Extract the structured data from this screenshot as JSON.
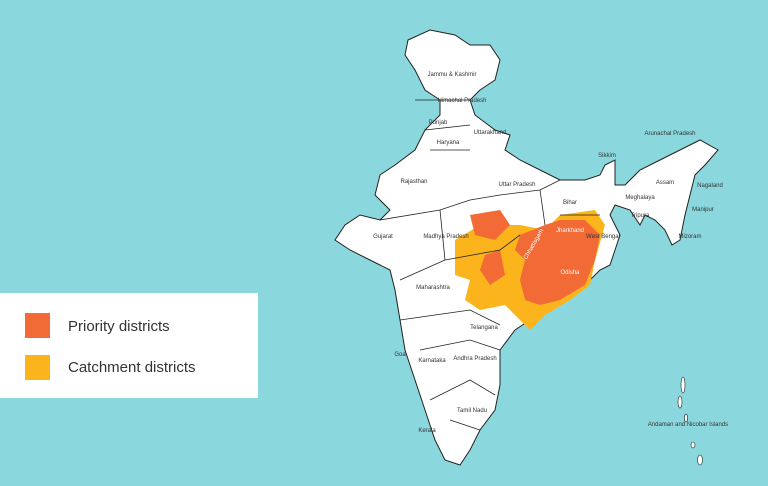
{
  "legend": {
    "items": [
      {
        "label": "Priority districts",
        "color": "#f26a36"
      },
      {
        "label": "Catchment districts",
        "color": "#fbb41c"
      }
    ]
  },
  "labels": [
    "Jammu & Kashmir",
    "Himachal Pradesh",
    "Punjab",
    "Uttarakhand",
    "Haryana",
    "Rajasthan",
    "Uttar Pradesh",
    "Sikkim",
    "Arunachal Pradesh",
    "Assam",
    "Nagaland",
    "Bihar",
    "Meghalaya",
    "Manipur",
    "Tripura",
    "Mizoram",
    "Gujarat",
    "Madhya Pradesh",
    "Jharkhand",
    "West Bengal",
    "Chhattisgarh",
    "Odisha",
    "Maharashtra",
    "Telangana",
    "Goa",
    "Karnataka",
    "Andhra Pradesh",
    "Tamil Nadu",
    "Kerala",
    "Andaman and Nicobar Islands"
  ]
}
